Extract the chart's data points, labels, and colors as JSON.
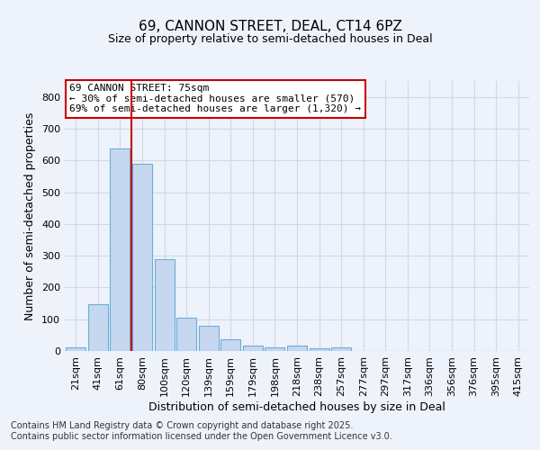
{
  "title": "69, CANNON STREET, DEAL, CT14 6PZ",
  "subtitle": "Size of property relative to semi-detached houses in Deal",
  "xlabel": "Distribution of semi-detached houses by size in Deal",
  "ylabel": "Number of semi-detached properties",
  "bar_labels": [
    "21sqm",
    "41sqm",
    "61sqm",
    "80sqm",
    "100sqm",
    "120sqm",
    "139sqm",
    "159sqm",
    "179sqm",
    "198sqm",
    "218sqm",
    "238sqm",
    "257sqm",
    "277sqm",
    "297sqm",
    "317sqm",
    "336sqm",
    "356sqm",
    "376sqm",
    "395sqm",
    "415sqm"
  ],
  "bar_values": [
    12,
    148,
    637,
    588,
    290,
    105,
    78,
    38,
    18,
    10,
    18,
    8,
    12,
    0,
    0,
    0,
    0,
    0,
    0,
    0,
    0
  ],
  "bar_color": "#c5d8f0",
  "bar_edge_color": "#6baed6",
  "grid_color": "#d0d8e8",
  "background_color": "#eef2fb",
  "property_value": 75,
  "vline_x": 2.5,
  "annotation_text": "69 CANNON STREET: 75sqm\n← 30% of semi-detached houses are smaller (570)\n69% of semi-detached houses are larger (1,320) →",
  "annotation_box_color": "#ffffff",
  "annotation_box_edge": "#cc0000",
  "vline_color": "#cc0000",
  "ylim": [
    0,
    850
  ],
  "yticks": [
    0,
    100,
    200,
    300,
    400,
    500,
    600,
    700,
    800
  ],
  "title_fontsize": 11,
  "axis_label_fontsize": 9,
  "tick_fontsize": 8,
  "annotation_fontsize": 8,
  "footer_text": "Contains HM Land Registry data © Crown copyright and database right 2025.\nContains public sector information licensed under the Open Government Licence v3.0.",
  "footer_fontsize": 7
}
